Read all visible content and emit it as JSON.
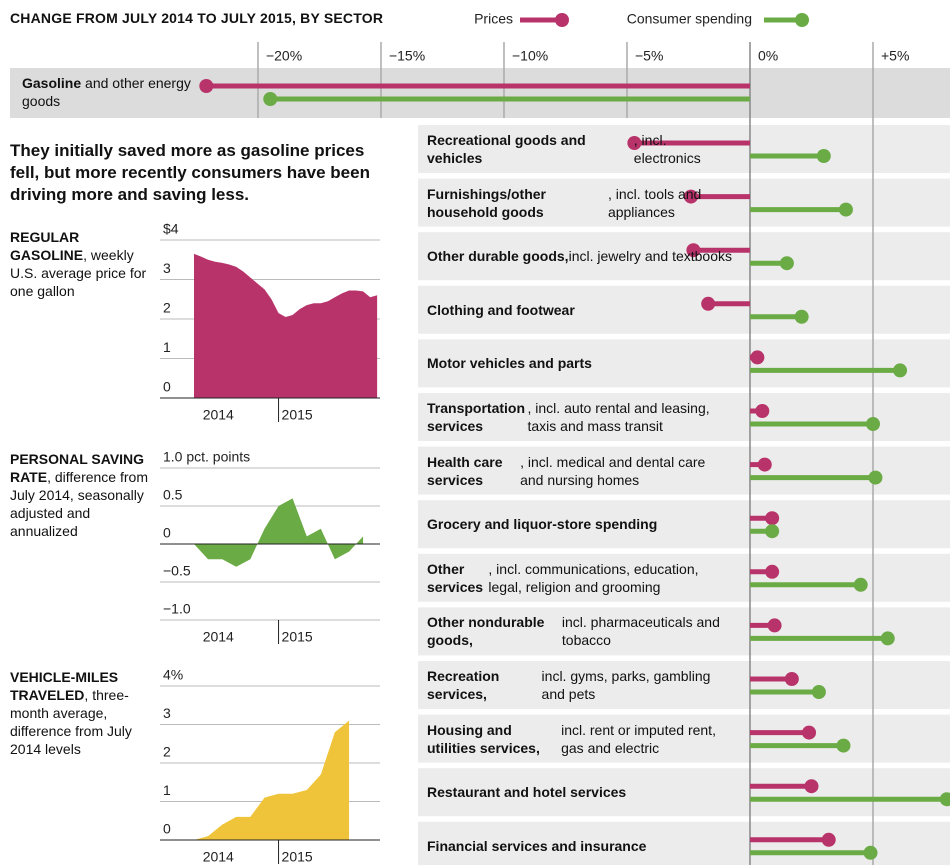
{
  "chart_data": [
    {
      "type": "lollipop",
      "title": "CHANGE FROM JULY 2014 TO JULY 2015, BY SECTOR",
      "annotation": "They initially saved more as gasoline prices fell, but more recently consumers have been driving more and saving less.",
      "categories": [
        {
          "name": "Gasoline",
          "note": " and other energy goods"
        },
        {
          "name": "Recreational goods and vehicles",
          "note": ", incl. electronics"
        },
        {
          "name": "Furnishings/other household goods",
          "note": ", incl. tools and appliances"
        },
        {
          "name": "Other durable goods,",
          "note": " incl. jewelry and textbooks"
        },
        {
          "name": "Clothing and footwear"
        },
        {
          "name": "Motor vehicles and parts"
        },
        {
          "name": "Transportation services",
          "note": ", incl. auto rental and leasing, taxis and mass transit"
        },
        {
          "name": "Health care services",
          "note": ", incl. medical and dental care and nursing homes"
        },
        {
          "name": "Grocery and liquor-store spending"
        },
        {
          "name": "Other services",
          "note": ", incl. communications, education, legal, religion and grooming"
        },
        {
          "name": "Other nondurable goods,",
          "note": " incl. pharmaceuticals and tobacco"
        },
        {
          "name": "Recreation services,",
          "note": " incl. gyms, parks, gambling and pets"
        },
        {
          "name": "Housing and utilities services,",
          "note": " incl. rent or imputed rent, gas and electric"
        },
        {
          "name": "Restaurant and hotel services"
        },
        {
          "name": "Financial services and insurance"
        }
      ],
      "series": [
        {
          "name": "Prices",
          "color": "#b8336a",
          "values": [
            -22.1,
            -4.7,
            -2.4,
            -2.3,
            -1.7,
            0.3,
            0.5,
            0.6,
            0.9,
            0.9,
            1.0,
            1.7,
            2.4,
            2.5,
            3.2
          ]
        },
        {
          "name": "Consumer spending",
          "color": "#6aab46",
          "values": [
            -19.5,
            3.0,
            3.9,
            1.5,
            2.1,
            6.1,
            5.0,
            5.1,
            0.9,
            4.5,
            5.6,
            2.8,
            3.8,
            8.0,
            4.9
          ]
        }
      ],
      "xlim": [
        -22.56,
        8.13
      ],
      "xticks": [
        {
          "value": -20,
          "label": "−20%"
        },
        {
          "value": -15,
          "label": "−15%"
        },
        {
          "value": -10,
          "label": "−10%"
        },
        {
          "value": -5,
          "label": "−5%"
        },
        {
          "value": 0,
          "label": "0%"
        },
        {
          "value": 5,
          "label": "+5%"
        }
      ]
    },
    {
      "type": "area",
      "label": {
        "name": "REGULAR GASOLINE",
        "note": ", weekly U.S. average price for one gallon"
      },
      "color": "#b8336a",
      "x": [
        2014.5,
        2014.542,
        2014.583,
        2014.625,
        2014.667,
        2014.708,
        2014.75,
        2014.792,
        2014.833,
        2014.875,
        2014.917,
        2014.958,
        2015.0,
        2015.042,
        2015.083,
        2015.125,
        2015.167,
        2015.208,
        2015.25,
        2015.292,
        2015.333,
        2015.375,
        2015.417,
        2015.458,
        2015.5,
        2015.542,
        2015.583
      ],
      "values": [
        3.65,
        3.58,
        3.5,
        3.45,
        3.42,
        3.38,
        3.32,
        3.2,
        3.05,
        2.9,
        2.75,
        2.5,
        2.15,
        2.05,
        2.1,
        2.25,
        2.35,
        2.4,
        2.4,
        2.45,
        2.55,
        2.65,
        2.72,
        2.72,
        2.7,
        2.55,
        2.6
      ],
      "xlim": [
        2014.5,
        2015.6
      ],
      "xticks": [
        2015
      ],
      "year_labels": [
        "2014",
        "2015"
      ],
      "ylim": [
        0,
        4
      ],
      "yticks": [
        {
          "value": 4,
          "label": "$4"
        },
        3,
        2,
        1,
        0
      ]
    },
    {
      "type": "area",
      "label": {
        "name": "PERSONAL SAVING RATE",
        "note": ", difference from July 2014, seasonally adjusted and annualized"
      },
      "color": "#6aab46",
      "x": [
        2014.5,
        2014.583,
        2014.667,
        2014.75,
        2014.833,
        2014.917,
        2015.0,
        2015.083,
        2015.167,
        2015.25,
        2015.333,
        2015.417,
        2015.5
      ],
      "values": [
        0,
        -0.2,
        -0.2,
        -0.3,
        -0.2,
        0.2,
        0.5,
        0.6,
        0.1,
        0.2,
        -0.2,
        -0.1,
        0.1
      ],
      "xlim": [
        2014.5,
        2015.6
      ],
      "xticks": [
        2015
      ],
      "year_labels": [
        "2014",
        "2015"
      ],
      "ylim": [
        -1,
        1
      ],
      "yticks": [
        {
          "value": 1,
          "label": "1.0 pct. points"
        },
        0.5,
        0,
        {
          "value": -0.5,
          "label": "−0.5"
        },
        {
          "value": -1,
          "label": "−1.0"
        }
      ]
    },
    {
      "type": "area",
      "label": {
        "name": "VEHICLE-MILES TRAVELED",
        "note": ", three-month average, difference from July 2014 levels"
      },
      "color": "#f0c43a",
      "x": [
        2014.5,
        2014.583,
        2014.667,
        2014.75,
        2014.833,
        2014.917,
        2015.0,
        2015.083,
        2015.167,
        2015.25,
        2015.333,
        2015.417
      ],
      "values": [
        0,
        0.1,
        0.4,
        0.6,
        0.6,
        1.1,
        1.2,
        1.2,
        1.3,
        1.7,
        2.8,
        3.1
      ],
      "xlim": [
        2014.5,
        2015.6
      ],
      "xticks": [
        2015
      ],
      "year_labels": [
        "2014",
        "2015"
      ],
      "ylim": [
        0,
        4
      ],
      "yticks": [
        {
          "value": 4,
          "label": "4%"
        },
        3,
        2,
        1,
        0
      ]
    }
  ]
}
